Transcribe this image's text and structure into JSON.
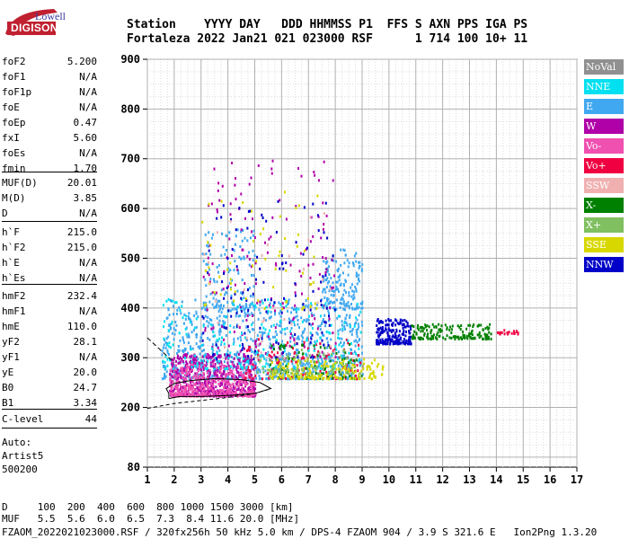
{
  "logo": {
    "line1": "Lowell",
    "line2": "DIGISONDE"
  },
  "header": {
    "line1": "Station    YYYY DAY   DDD HHMMSS P1  FFS S AXN PPS IGA PS",
    "line2": "Fortaleza 2022 Jan21 021 023000 RSF      1 714 100 10+ 11"
  },
  "params": {
    "group1": [
      {
        "label": "foF2",
        "value": "5.200"
      },
      {
        "label": "foF1",
        "value": "N/A"
      },
      {
        "label": "foF1p",
        "value": "N/A"
      },
      {
        "label": "foE",
        "value": "N/A"
      },
      {
        "label": "foEp",
        "value": "0.47"
      },
      {
        "label": "fxI",
        "value": "5.60"
      },
      {
        "label": "foEs",
        "value": "N/A"
      },
      {
        "label": "fmin",
        "value": "1.70"
      }
    ],
    "group2": [
      {
        "label": "MUF(D)",
        "value": "20.01"
      },
      {
        "label": "M(D)",
        "value": "3.85"
      },
      {
        "label": "D",
        "value": "N/A"
      }
    ],
    "group3": [
      {
        "label": "h`F",
        "value": "215.0"
      },
      {
        "label": "h`F2",
        "value": "215.0"
      },
      {
        "label": "h`E",
        "value": "N/A"
      },
      {
        "label": "h`Es",
        "value": "N/A"
      }
    ],
    "group4": [
      {
        "label": "hmF2",
        "value": "232.4"
      },
      {
        "label": "hmF1",
        "value": "N/A"
      },
      {
        "label": "hmE",
        "value": "110.0"
      },
      {
        "label": "yF2",
        "value": "28.1"
      },
      {
        "label": "yF1",
        "value": "N/A"
      },
      {
        "label": "yE",
        "value": "20.0"
      },
      {
        "label": "B0",
        "value": "24.7"
      },
      {
        "label": "B1",
        "value": "3.34"
      }
    ],
    "clevel": {
      "label": "C-level",
      "value": "44"
    },
    "auto": [
      "Auto:",
      "Artist5",
      "500200"
    ]
  },
  "legend": [
    {
      "label": "NoVal",
      "color": "#909090"
    },
    {
      "label": "NNE",
      "color": "#00e0f0"
    },
    {
      "label": "E",
      "color": "#40a8f0"
    },
    {
      "label": "W",
      "color": "#b000a8"
    },
    {
      "label": "Vo-",
      "color": "#f050b0"
    },
    {
      "label": "Vo+",
      "color": "#f00040"
    },
    {
      "label": "SSW",
      "color": "#f0b0b0"
    },
    {
      "label": "X-",
      "color": "#008000"
    },
    {
      "label": "X+",
      "color": "#80c060"
    },
    {
      "label": "SSE",
      "color": "#d8d800"
    },
    {
      "label": "NNW",
      "color": "#0000c8"
    }
  ],
  "footer": {
    "line1": "D     100  200  400  600  800 1000 1500 3000 [km]",
    "line2": "MUF   5.5  5.6  6.0  6.5  7.3  8.4 11.6 20.0 [MHz]",
    "line3": "FZAOM_2022021023000.RSF / 320fx256h 50 kHz 5.0 km / DPS-4 FZAOM 904 / 3.9 S 321.6 E   Ion2Png 1.3.20"
  },
  "chart_data": {
    "type": "scatter",
    "title": "",
    "xlabel": "",
    "ylabel": "",
    "xlim": [
      1,
      17
    ],
    "ylim": [
      80,
      900
    ],
    "xticks": [
      1,
      2,
      3,
      4,
      5,
      6,
      7,
      8,
      9,
      10,
      11,
      12,
      13,
      14,
      15,
      16,
      17
    ],
    "yticks": [
      80,
      200,
      300,
      400,
      500,
      600,
      700,
      800,
      900
    ],
    "grid": true,
    "trace_clusters": [
      {
        "series": "E",
        "color": "#40a8f0",
        "x": [
          1.5,
          9.0
        ],
        "y": [
          260,
          420
        ],
        "count": 900
      },
      {
        "series": "E",
        "color": "#40a8f0",
        "x": [
          7.5,
          9.0
        ],
        "y": [
          400,
          520
        ],
        "count": 150
      },
      {
        "series": "E",
        "color": "#40a8f0",
        "x": [
          3.0,
          5.0
        ],
        "y": [
          400,
          560
        ],
        "count": 120
      },
      {
        "series": "W",
        "color": "#b000a8",
        "x": [
          1.8,
          5.0
        ],
        "y": [
          225,
          310
        ],
        "count": 550
      },
      {
        "series": "W",
        "color": "#b000a8",
        "x": [
          3.0,
          8.0
        ],
        "y": [
          300,
          700
        ],
        "count": 180
      },
      {
        "series": "Vo-",
        "color": "#f050b0",
        "x": [
          1.8,
          5.0
        ],
        "y": [
          225,
          290
        ],
        "count": 350
      },
      {
        "series": "Vo+",
        "color": "#f00040",
        "x": [
          4.5,
          9.0
        ],
        "y": [
          260,
          340
        ],
        "count": 120
      },
      {
        "series": "NNE",
        "color": "#00e0f0",
        "x": [
          1.5,
          9.0
        ],
        "y": [
          280,
          420
        ],
        "count": 220
      },
      {
        "series": "NNW",
        "color": "#0000c8",
        "x": [
          9.5,
          10.8
        ],
        "y": [
          330,
          380
        ],
        "count": 200
      },
      {
        "series": "NNW",
        "color": "#0000c8",
        "x": [
          3.0,
          8.0
        ],
        "y": [
          300,
          620
        ],
        "count": 120
      },
      {
        "series": "X-",
        "color": "#008000",
        "x": [
          10.8,
          13.8
        ],
        "y": [
          340,
          370
        ],
        "count": 160
      },
      {
        "series": "X-",
        "color": "#008000",
        "x": [
          5.5,
          9.0
        ],
        "y": [
          260,
          330
        ],
        "count": 80
      },
      {
        "series": "SSE",
        "color": "#d8d800",
        "x": [
          5.5,
          9.8
        ],
        "y": [
          260,
          300
        ],
        "count": 180
      },
      {
        "series": "SSE",
        "color": "#d8d800",
        "x": [
          3.0,
          7.5
        ],
        "y": [
          400,
          640
        ],
        "count": 60
      },
      {
        "series": "X+",
        "color": "#80c060",
        "x": [
          5.0,
          9.0
        ],
        "y": [
          270,
          320
        ],
        "count": 80
      },
      {
        "series": "SSW",
        "color": "#f0b0b0",
        "x": [
          3.0,
          8.0
        ],
        "y": [
          300,
          600
        ],
        "count": 40
      },
      {
        "series": "Vo+",
        "color": "#f00040",
        "x": [
          14.0,
          14.8
        ],
        "y": [
          350,
          358
        ],
        "count": 20
      }
    ],
    "profile_outline": [
      [
        1.8,
        218
      ],
      [
        2.2,
        222
      ],
      [
        3.0,
        222
      ],
      [
        4.0,
        224
      ],
      [
        5.0,
        228
      ],
      [
        5.6,
        238
      ],
      [
        5.2,
        250
      ],
      [
        4.5,
        256
      ],
      [
        3.5,
        258
      ],
      [
        2.6,
        254
      ],
      [
        2.0,
        248
      ],
      [
        1.7,
        238
      ],
      [
        1.8,
        228
      ],
      [
        1.8,
        218
      ]
    ],
    "virtual_height_line": [
      [
        1.0,
        198
      ],
      [
        2.0,
        208
      ],
      [
        3.0,
        214
      ],
      [
        4.0,
        220
      ],
      [
        5.0,
        228
      ],
      [
        5.5,
        236
      ]
    ],
    "dashed_line": [
      [
        1.0,
        340
      ],
      [
        2.0,
        290
      ]
    ]
  }
}
